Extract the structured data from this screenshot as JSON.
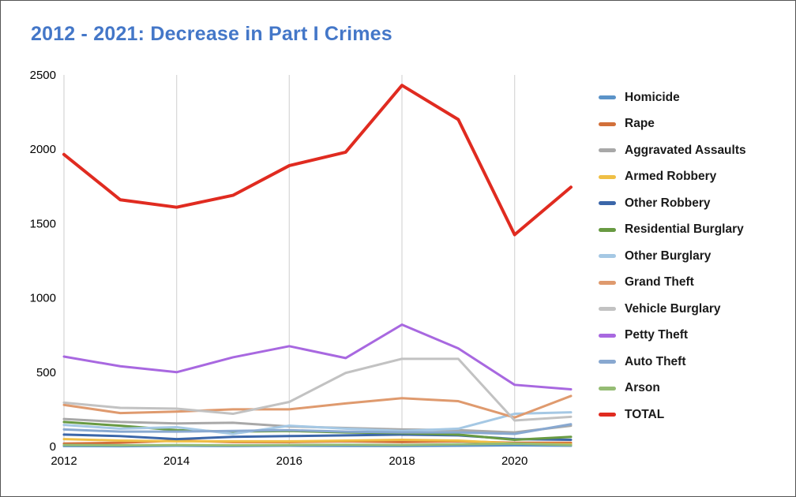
{
  "chart_data": {
    "type": "line",
    "title": "2012 - 2021: Decrease in Part I Crimes",
    "xlabel": "",
    "ylabel": "",
    "x": [
      2012,
      2013,
      2014,
      2015,
      2016,
      2017,
      2018,
      2019,
      2020,
      2021
    ],
    "x_tick_labels": [
      "2012",
      "2014",
      "2016",
      "2018",
      "2020"
    ],
    "x_ticks_shown": [
      2012,
      2014,
      2016,
      2018,
      2020
    ],
    "y_ticks": [
      0,
      500,
      1000,
      1500,
      2000,
      2500
    ],
    "ylim": [
      0,
      2500
    ],
    "xlim": [
      2012,
      2021
    ],
    "grid": "vertical-only",
    "legend_position": "right",
    "series": [
      {
        "name": "Homicide",
        "color": "#5B93C8",
        "line_width": 3,
        "values": [
          3,
          2,
          5,
          3,
          5,
          4,
          3,
          5,
          8,
          5
        ]
      },
      {
        "name": "Rape",
        "color": "#D2703A",
        "line_width": 3,
        "values": [
          20,
          25,
          40,
          30,
          30,
          35,
          30,
          35,
          25,
          25
        ]
      },
      {
        "name": "Aggravated Assaults",
        "color": "#A8A8A8",
        "line_width": 3,
        "values": [
          185,
          165,
          155,
          160,
          135,
          125,
          115,
          110,
          95,
          140
        ]
      },
      {
        "name": "Armed Robbery",
        "color": "#EFBF45",
        "line_width": 3,
        "values": [
          50,
          40,
          35,
          35,
          35,
          40,
          45,
          40,
          20,
          15
        ]
      },
      {
        "name": "Other Robbery",
        "color": "#3B66A9",
        "line_width": 3,
        "values": [
          80,
          70,
          50,
          65,
          70,
          75,
          80,
          75,
          50,
          45
        ]
      },
      {
        "name": "Residential Burglary",
        "color": "#689A42",
        "line_width": 3,
        "values": [
          165,
          140,
          110,
          100,
          105,
          95,
          90,
          80,
          45,
          65
        ]
      },
      {
        "name": "Other Burglary",
        "color": "#A5C8E4",
        "line_width": 3,
        "values": [
          145,
          120,
          130,
          85,
          140,
          120,
          105,
          120,
          220,
          230
        ]
      },
      {
        "name": "Grand Theft",
        "color": "#DF9A6E",
        "line_width": 3,
        "values": [
          280,
          225,
          235,
          250,
          250,
          290,
          325,
          305,
          195,
          340
        ]
      },
      {
        "name": "Vehicle Burglary",
        "color": "#C2C2C2",
        "line_width": 3,
        "values": [
          295,
          260,
          255,
          220,
          300,
          495,
          590,
          590,
          175,
          200
        ]
      },
      {
        "name": "Petty Theft",
        "color": "#A868E0",
        "line_width": 3,
        "values": [
          605,
          540,
          500,
          600,
          675,
          595,
          820,
          660,
          415,
          385
        ]
      },
      {
        "name": "Auto Theft",
        "color": "#88A8D0",
        "line_width": 3,
        "values": [
          115,
          100,
          100,
          105,
          110,
          100,
          95,
          95,
          85,
          150
        ]
      },
      {
        "name": "Arson",
        "color": "#95BC74",
        "line_width": 3,
        "values": [
          10,
          8,
          10,
          8,
          10,
          12,
          10,
          15,
          20,
          10
        ]
      },
      {
        "name": "TOTAL",
        "color": "#E02B20",
        "line_width": 4,
        "values": [
          1965,
          1660,
          1610,
          1690,
          1890,
          1980,
          2430,
          2200,
          1425,
          1745
        ]
      }
    ]
  },
  "colors": {
    "title_text": "#4477C8",
    "gridline": "#D9D9D9",
    "axis_text": "#000000",
    "background": "#FFFFFF",
    "border": "#555555"
  }
}
